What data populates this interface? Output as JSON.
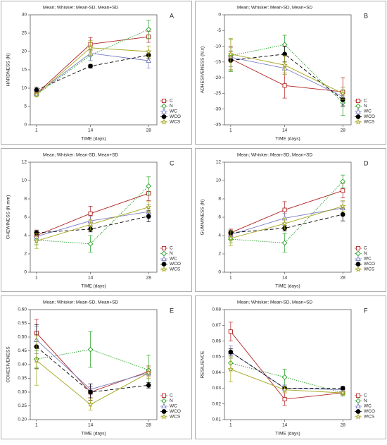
{
  "chart_data": [
    {
      "type": "line",
      "title": "Mean; Whisker: Mean-SD, Mean+SD",
      "panel": "A",
      "xlabel": "TIME (days)",
      "ylabel": "HARDNESS (N)",
      "x": [
        1,
        14,
        28
      ],
      "xlim": [
        -0.5,
        30
      ],
      "xticks": [
        1,
        14,
        28
      ],
      "ylim": [
        0,
        30
      ],
      "yticks": [
        0,
        5,
        10,
        15,
        20,
        25,
        30
      ],
      "legend": "bottom right",
      "series": [
        {
          "name": "C",
          "color": "#b22222",
          "marker": "square",
          "linestyle": "solid",
          "values": [
            8.5,
            22,
            24
          ],
          "errors": [
            0.5,
            1.8,
            1.5
          ]
        },
        {
          "name": "N",
          "color": "#22a022",
          "marker": "diamond",
          "linestyle": "dot",
          "values": [
            8.2,
            19,
            26
          ],
          "errors": [
            0.5,
            1.5,
            2.5
          ]
        },
        {
          "name": "WC",
          "color": "#7b7fc4",
          "marker": "triangle",
          "linestyle": "solid",
          "values": [
            8.5,
            19.5,
            17.5
          ],
          "errors": [
            0.5,
            2,
            2
          ]
        },
        {
          "name": "WCO",
          "color": "#000000",
          "marker": "circle",
          "linestyle": "dash",
          "values": [
            9.5,
            16,
            19
          ],
          "errors": [
            0.8,
            0.5,
            1
          ]
        },
        {
          "name": "WCS",
          "color": "#a6a51e",
          "marker": "star",
          "linestyle": "solid",
          "values": [
            8.2,
            21,
            20
          ],
          "errors": [
            0.5,
            2,
            1.5
          ]
        }
      ]
    },
    {
      "type": "line",
      "title": "Mean; Whisker: Mean-SD, Mean+SD",
      "panel": "B",
      "xlabel": "TIME (days)",
      "ylabel": "ADHESIVENESS (N.s)",
      "x": [
        1,
        14,
        28
      ],
      "xlim": [
        -0.5,
        30
      ],
      "xticks": [
        1,
        14,
        28
      ],
      "ylim": [
        -35,
        0
      ],
      "yticks": [
        -35,
        -30,
        -25,
        -20,
        -15,
        -10,
        -5,
        0
      ],
      "legend": "bottom right",
      "series": [
        {
          "name": "C",
          "color": "#b22222",
          "marker": "square",
          "linestyle": "solid",
          "values": [
            -14,
            -22.5,
            -24.5
          ],
          "errors": [
            4,
            4,
            4.5
          ]
        },
        {
          "name": "N",
          "color": "#22a022",
          "marker": "diamond",
          "linestyle": "dot",
          "values": [
            -13,
            -9.5,
            -28
          ],
          "errors": [
            5,
            3,
            4
          ]
        },
        {
          "name": "WC",
          "color": "#7b7fc4",
          "marker": "triangle",
          "linestyle": "solid",
          "values": [
            -13.5,
            -17,
            -26
          ],
          "errors": [
            3,
            2,
            3
          ]
        },
        {
          "name": "WCO",
          "color": "#000000",
          "marker": "circle",
          "linestyle": "dash",
          "values": [
            -14.5,
            -12.5,
            -27
          ],
          "errors": [
            3,
            2.5,
            2
          ]
        },
        {
          "name": "WCS",
          "color": "#a6a51e",
          "marker": "star",
          "linestyle": "solid",
          "values": [
            -12.5,
            -16,
            -25
          ],
          "errors": [
            5,
            3,
            2
          ]
        }
      ]
    },
    {
      "type": "line",
      "title": "Mean; Whisker: Mean-SD, Mean+SD",
      "panel": "C",
      "xlabel": "TIME (days)",
      "ylabel": "CHEWINESS (N.mm)",
      "x": [
        1,
        14,
        28
      ],
      "xlim": [
        -0.5,
        30
      ],
      "xticks": [
        1,
        14,
        28
      ],
      "ylim": [
        0,
        12
      ],
      "yticks": [
        0,
        2,
        4,
        6,
        8,
        10,
        12
      ],
      "legend": "bottom right",
      "series": [
        {
          "name": "C",
          "color": "#b22222",
          "marker": "square",
          "linestyle": "solid",
          "values": [
            4.0,
            6.4,
            8.6
          ],
          "errors": [
            0.5,
            0.8,
            0.8
          ]
        },
        {
          "name": "N",
          "color": "#22a022",
          "marker": "diamond",
          "linestyle": "dot",
          "values": [
            3.5,
            3.1,
            9.4
          ],
          "errors": [
            0.5,
            0.9,
            1
          ]
        },
        {
          "name": "WC",
          "color": "#7b7fc4",
          "marker": "triangle",
          "linestyle": "solid",
          "values": [
            3.9,
            5.6,
            6.6
          ],
          "errors": [
            0.4,
            0.5,
            0.8
          ]
        },
        {
          "name": "WCO",
          "color": "#000000",
          "marker": "circle",
          "linestyle": "dash",
          "values": [
            4.3,
            4.7,
            6.1
          ],
          "errors": [
            0.3,
            0.3,
            0.6
          ]
        },
        {
          "name": "WCS",
          "color": "#a6a51e",
          "marker": "star",
          "linestyle": "solid",
          "values": [
            3.4,
            5.2,
            7.1
          ],
          "errors": [
            0.8,
            0.6,
            0.6
          ]
        }
      ]
    },
    {
      "type": "line",
      "title": "Mean; Whisker: Mean-SD, Mean+SD",
      "panel": "D",
      "xlabel": "TIME (days)",
      "ylabel": "GUMMINESS (N)",
      "x": [
        1,
        14,
        28
      ],
      "xlim": [
        -0.5,
        30
      ],
      "xticks": [
        1,
        14,
        28
      ],
      "ylim": [
        0,
        12
      ],
      "yticks": [
        0,
        2,
        4,
        6,
        8,
        10,
        12
      ],
      "legend": "bottom right",
      "series": [
        {
          "name": "C",
          "color": "#b22222",
          "marker": "square",
          "linestyle": "solid",
          "values": [
            4.3,
            6.8,
            8.9
          ],
          "errors": [
            0.4,
            0.9,
            0.8
          ]
        },
        {
          "name": "N",
          "color": "#22a022",
          "marker": "diamond",
          "linestyle": "dot",
          "values": [
            3.6,
            3.2,
            9.9
          ],
          "errors": [
            0.4,
            1,
            0.7
          ]
        },
        {
          "name": "WC",
          "color": "#7b7fc4",
          "marker": "triangle",
          "linestyle": "solid",
          "values": [
            4.1,
            5.9,
            7.0
          ],
          "errors": [
            0.3,
            0.5,
            0.7
          ]
        },
        {
          "name": "WCO",
          "color": "#000000",
          "marker": "circle",
          "linestyle": "dash",
          "values": [
            4.3,
            4.8,
            6.3
          ],
          "errors": [
            0.3,
            0.3,
            0.7
          ]
        },
        {
          "name": "WCS",
          "color": "#a6a51e",
          "marker": "star",
          "linestyle": "solid",
          "values": [
            3.7,
            5.3,
            7.2
          ],
          "errors": [
            0.8,
            0.6,
            0.6
          ]
        }
      ]
    },
    {
      "type": "line",
      "title": "Mean; Whisker: Mean-SD, Mean+SD",
      "panel": "E",
      "xlabel": "TIME (days)",
      "ylabel": "COHESIVENESS",
      "x": [
        1,
        14,
        28
      ],
      "xlim": [
        -0.5,
        30
      ],
      "xticks": [
        1,
        14,
        28
      ],
      "ylim": [
        0.2,
        0.6
      ],
      "yticks": [
        {
          "value": 0.2,
          "label": "0.20"
        },
        0.25,
        {
          "value": 0.3,
          "label": "0.30"
        },
        0.35,
        {
          "value": 0.4,
          "label": "0.40"
        },
        0.45,
        {
          "value": 0.5,
          "label": "0.50"
        },
        0.55,
        {
          "value": 0.6,
          "label": "0.60"
        }
      ],
      "legend": "bottom right",
      "series": [
        {
          "name": "C",
          "color": "#b22222",
          "marker": "square",
          "linestyle": "solid",
          "values": [
            0.515,
            0.3,
            0.375
          ],
          "errors": [
            0.05,
            0.02,
            0.02
          ]
        },
        {
          "name": "N",
          "color": "#22a022",
          "marker": "diamond",
          "linestyle": "dot",
          "values": [
            0.42,
            0.455,
            0.38
          ],
          "errors": [
            0.03,
            0.065,
            0.055
          ]
        },
        {
          "name": "WC",
          "color": "#7b7fc4",
          "marker": "triangle",
          "linestyle": "solid",
          "values": [
            0.49,
            0.31,
            0.37
          ],
          "errors": [
            0.05,
            0.02,
            0.01
          ]
        },
        {
          "name": "WCO",
          "color": "#000000",
          "marker": "circle",
          "linestyle": "dash",
          "values": [
            0.465,
            0.3,
            0.325
          ],
          "errors": [
            0.08,
            0.03,
            0.01
          ]
        },
        {
          "name": "WCS",
          "color": "#a6a51e",
          "marker": "star",
          "linestyle": "solid",
          "values": [
            0.415,
            0.255,
            0.37
          ],
          "errors": [
            0.09,
            0.02,
            0.02
          ]
        }
      ]
    },
    {
      "type": "line",
      "title": "Mean; Whisker: Mean-SD, Mean+SD",
      "panel": "F",
      "xlabel": "TIME (days)",
      "ylabel": "RESILIENCE",
      "x": [
        1,
        14,
        28
      ],
      "xlim": [
        -0.5,
        30
      ],
      "xticks": [
        1,
        14,
        28
      ],
      "ylim": [
        0.01,
        0.08
      ],
      "yticks": [
        0.01,
        0.02,
        0.03,
        0.04,
        0.05,
        0.06,
        0.07,
        0.08
      ],
      "legend": "bottom right",
      "series": [
        {
          "name": "C",
          "color": "#b22222",
          "marker": "square",
          "linestyle": "solid",
          "values": [
            0.066,
            0.023,
            0.027
          ],
          "errors": [
            0.006,
            0.004,
            0.002
          ]
        },
        {
          "name": "N",
          "color": "#22a022",
          "marker": "diamond",
          "linestyle": "dot",
          "values": [
            0.046,
            0.037,
            0.027
          ],
          "errors": [
            0.004,
            0.005,
            0.002
          ]
        },
        {
          "name": "WC",
          "color": "#7b7fc4",
          "marker": "triangle",
          "linestyle": "solid",
          "values": [
            0.053,
            0.03,
            0.029
          ],
          "errors": [
            0.004,
            0.002,
            0.001
          ]
        },
        {
          "name": "WCO",
          "color": "#000000",
          "marker": "circle",
          "linestyle": "dash",
          "values": [
            0.053,
            0.03,
            0.03
          ],
          "errors": [
            0.002,
            0.001,
            0.001
          ]
        },
        {
          "name": "WCS",
          "color": "#a6a51e",
          "marker": "star",
          "linestyle": "solid",
          "values": [
            0.042,
            0.029,
            0.027
          ],
          "errors": [
            0.008,
            0.002,
            0.001
          ]
        }
      ]
    }
  ]
}
